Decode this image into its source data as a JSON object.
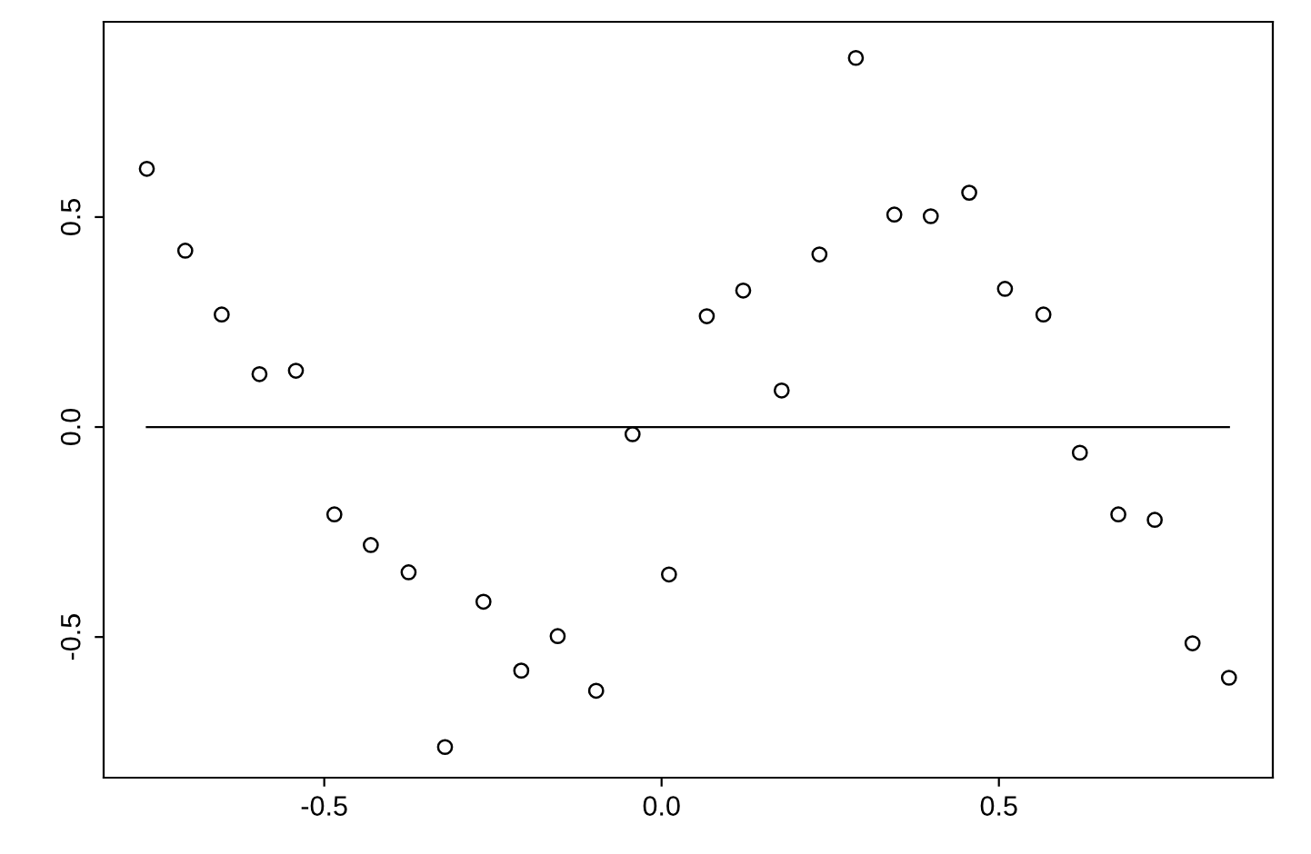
{
  "chart_data": {
    "type": "scatter",
    "xlim": [
      -0.827,
      0.906
    ],
    "ylim": [
      -0.835,
      0.965
    ],
    "xticks": [
      {
        "value": -0.5,
        "label": "-0.5"
      },
      {
        "value": 0.0,
        "label": "0.0"
      },
      {
        "value": 0.5,
        "label": "0.5"
      }
    ],
    "yticks": [
      {
        "value": -0.5,
        "label": "-0.5"
      },
      {
        "value": 0.0,
        "label": "0.0"
      },
      {
        "value": 0.5,
        "label": "0.5"
      }
    ],
    "grid": false,
    "legend": false,
    "series": [
      {
        "marker": "circle",
        "color": "#000000",
        "x": [
          -0.763,
          -0.706,
          -0.652,
          -0.596,
          -0.542,
          -0.485,
          -0.431,
          -0.375,
          -0.321,
          -0.264,
          -0.208,
          -0.154,
          -0.097,
          -0.043,
          0.011,
          0.067,
          0.121,
          0.178,
          0.234,
          0.288,
          0.345,
          0.399,
          0.456,
          0.509,
          0.566,
          0.62,
          0.677,
          0.731,
          0.787,
          0.841
        ],
        "values": [
          0.615,
          0.42,
          0.268,
          0.126,
          0.134,
          -0.208,
          -0.281,
          -0.346,
          -0.762,
          -0.416,
          -0.58,
          -0.498,
          -0.628,
          -0.017,
          -0.351,
          0.264,
          0.325,
          0.087,
          0.411,
          0.879,
          0.506,
          0.502,
          0.558,
          0.329,
          0.268,
          -0.061,
          -0.208,
          -0.221,
          -0.515,
          -0.597
        ]
      },
      {
        "type": "line",
        "marker": "none",
        "line_style": "solid",
        "color": "#000000",
        "x": [
          -0.763,
          0.841
        ],
        "values": [
          0,
          0
        ]
      }
    ]
  }
}
